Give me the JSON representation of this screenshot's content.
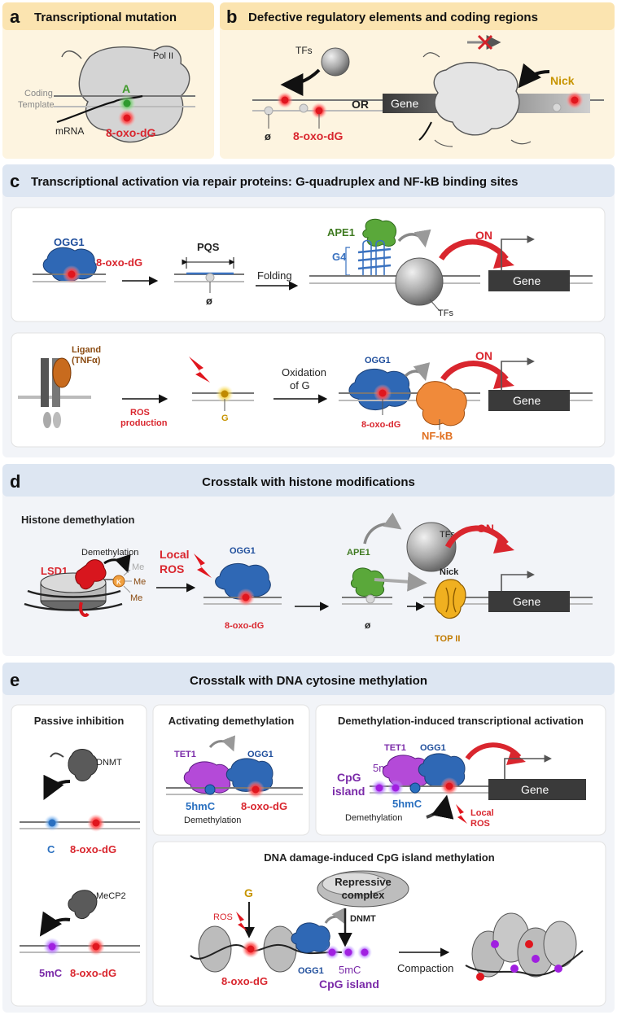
{
  "panel_a": {
    "letter": "a",
    "title": "Transcriptional mutation",
    "pol": "Pol II",
    "coding": "Coding",
    "template": "Template",
    "base": "A",
    "mrna": "mRNA",
    "lesion": "8-oxo-dG"
  },
  "panel_b": {
    "letter": "b",
    "title": "Defective regulatory elements and coding regions",
    "tfs": "TFs",
    "abasic": "ø",
    "lesion": "8-oxo-dG",
    "or": "OR",
    "gene": "Gene",
    "nick": "Nick"
  },
  "panel_c": {
    "letter": "c",
    "title": "Transcriptional activation via repair proteins: G-quadruplex and NF-kB binding sites",
    "top": {
      "ogg1": "OGG1",
      "lesion": "8-oxo-dG",
      "pqs": "PQS",
      "abasic": "ø",
      "folding": "Folding",
      "ape1": "APE1",
      "g4": "G4",
      "on": "ON",
      "tfs": "TFs",
      "gene": "Gene"
    },
    "bottom": {
      "ligand1": "Ligand",
      "ligand2": "(TNFα)",
      "ros1": "ROS",
      "ros2": "production",
      "g": "G",
      "ox1": "Oxidation",
      "ox2": "of G",
      "ogg1": "OGG1",
      "lesion": "8-oxo-dG",
      "nfkb": "NF-kB",
      "on": "ON",
      "gene": "Gene"
    }
  },
  "panel_d": {
    "letter": "d",
    "title": "Crosstalk with histone modifications",
    "subtitle": "Histone demethylation",
    "demethylation": "Demethylation",
    "lsd1": "LSD1",
    "k": "K",
    "me": "Me",
    "local": "Local",
    "ros": "ROS",
    "ogg1": "OGG1",
    "lesion": "8-oxo-dG",
    "ape1": "APE1",
    "abasic": "ø",
    "tfs": "TFs",
    "on": "ON",
    "nick": "Nick",
    "top2": "TOP II",
    "gene": "Gene"
  },
  "panel_e": {
    "letter": "e",
    "title": "Crosstalk with DNA cytosine methylation",
    "passive": {
      "title": "Passive inhibition",
      "dnmt": "DNMT",
      "c": "C",
      "lesion1": "8-oxo-dG",
      "mecp2": "MeCP2",
      "fivemc": "5mC",
      "lesion2": "8-oxo-dG"
    },
    "activating": {
      "title": "Activating demethylation",
      "tet1": "TET1",
      "ogg1": "OGG1",
      "fivehmc": "5hmC",
      "lesion": "8-oxo-dG",
      "demethylation": "Demethylation"
    },
    "transcriptional": {
      "title": "Demethylation-induced transcriptional activation",
      "tet1": "TET1",
      "ogg1": "OGG1",
      "fivemc": "5mC",
      "cpg1": "CpG",
      "cpg2": "island",
      "fivehmc": "5hmC",
      "gene": "Gene",
      "demethylation": "Demethylation",
      "local": "Local",
      "ros": "ROS"
    },
    "damage": {
      "title": "DNA damage-induced CpG island methylation",
      "g": "G",
      "ros": "ROS",
      "repressive1": "Repressive",
      "repressive2": "complex",
      "dnmt": "DNMT",
      "lesion": "8-oxo-dG",
      "ogg1": "OGG1",
      "fivemc": "5mC",
      "cpgisland": "CpG island",
      "compaction": "Compaction"
    }
  }
}
